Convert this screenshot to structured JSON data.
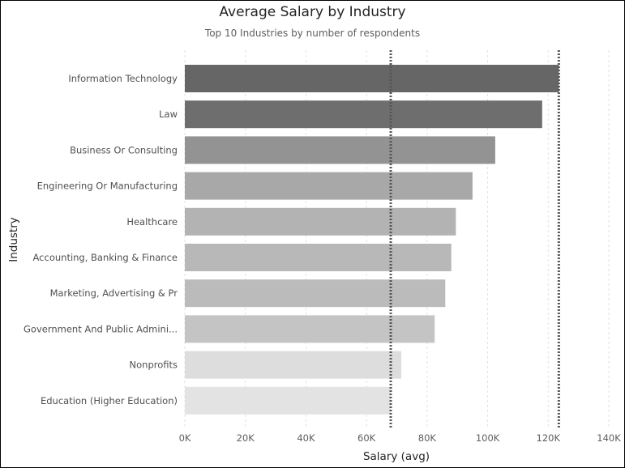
{
  "chart_data": {
    "type": "bar",
    "orientation": "horizontal",
    "title": "Average Salary by Industry",
    "subtitle": "Top 10 Industries by number of respondents",
    "xlabel": "Salary (avg)",
    "ylabel": "Industry",
    "xlim": [
      0,
      140000
    ],
    "xticks": [
      0,
      20000,
      40000,
      60000,
      80000,
      100000,
      120000,
      140000
    ],
    "xtick_labels": [
      "0K",
      "20K",
      "40K",
      "60K",
      "80K",
      "100K",
      "120K",
      "140K"
    ],
    "categories": [
      "Information Technology",
      "Law",
      "Business Or Consulting",
      "Engineering Or Manufacturing",
      "Healthcare",
      "Accounting, Banking & Finance",
      "Marketing, Advertising & Pr",
      "Government And Public Admini...",
      "Nonprofits",
      "Education (Higher Education)"
    ],
    "values": [
      123500,
      118000,
      102500,
      95000,
      89500,
      88000,
      86000,
      82500,
      71500,
      68000
    ],
    "bar_colors": [
      "#666666",
      "#6e6e6e",
      "#939393",
      "#a8a8a8",
      "#b3b3b3",
      "#b8b8b8",
      "#bbbbbb",
      "#c4c4c4",
      "#dddddd",
      "#e3e3e3"
    ],
    "reference_lines": [
      68000,
      123500
    ],
    "grid": true
  }
}
